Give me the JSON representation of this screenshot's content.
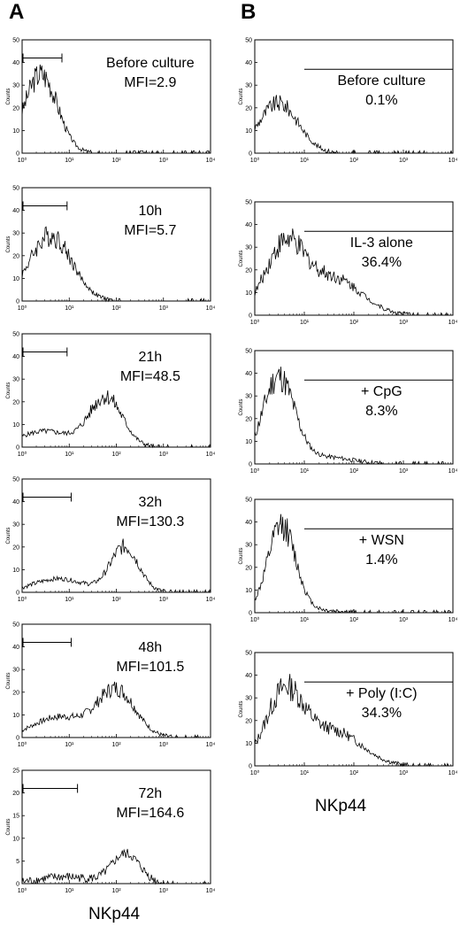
{
  "figure": {
    "panel_a": {
      "letter": "A",
      "x_axis_title": "NKp44"
    },
    "panel_b": {
      "letter": "B",
      "x_axis_title": "NKp44"
    }
  },
  "chart_data": [
    {
      "panel": "A",
      "type": "area",
      "y_axis_label": "Counts",
      "xscale": "log",
      "xlim": [
        1,
        10000
      ],
      "ylim": [
        0,
        50
      ],
      "yticks": [
        0,
        10,
        20,
        30,
        40,
        50
      ],
      "xticks": [
        "10⁰",
        "10¹",
        "10²",
        "10³",
        "10⁴"
      ],
      "annotation": [
        "Before culture",
        "MFI=2.9"
      ],
      "gate": [
        1,
        7
      ],
      "profile": {
        "peak_x": 2.5,
        "peak_y": 35,
        "width": 0.35,
        "tail": 0.0,
        "tail_x": 0
      }
    },
    {
      "panel": "A",
      "type": "area",
      "y_axis_label": "Counts",
      "xscale": "log",
      "xlim": [
        1,
        10000
      ],
      "ylim": [
        0,
        50
      ],
      "yticks": [
        0,
        10,
        20,
        30,
        40,
        50
      ],
      "xticks": [
        "10⁰",
        "10¹",
        "10²",
        "10³",
        "10⁴"
      ],
      "annotation": [
        "10h",
        "MFI=5.7"
      ],
      "gate": [
        1,
        9
      ],
      "profile": {
        "peak_x": 4,
        "peak_y": 29,
        "width": 0.45,
        "tail": 0.0,
        "tail_x": 0
      }
    },
    {
      "panel": "A",
      "type": "area",
      "y_axis_label": "Counts",
      "xscale": "log",
      "xlim": [
        1,
        10000
      ],
      "ylim": [
        0,
        50
      ],
      "yticks": [
        0,
        10,
        20,
        30,
        40,
        50
      ],
      "xticks": [
        "10⁰",
        "10¹",
        "10²",
        "10³",
        "10⁴"
      ],
      "annotation": [
        "21h",
        "MFI=48.5"
      ],
      "gate": [
        1,
        9
      ],
      "profile": {
        "peak_x": 60,
        "peak_y": 22,
        "width": 0.35,
        "tail": 7,
        "tail_x": 3
      }
    },
    {
      "panel": "A",
      "type": "area",
      "y_axis_label": "Counts",
      "xscale": "log",
      "xlim": [
        1,
        10000
      ],
      "ylim": [
        0,
        50
      ],
      "yticks": [
        0,
        10,
        20,
        30,
        40,
        50
      ],
      "xticks": [
        "10⁰",
        "10¹",
        "10²",
        "10³",
        "10⁴"
      ],
      "annotation": [
        "32h",
        "MFI=130.3"
      ],
      "gate": [
        1,
        11
      ],
      "profile": {
        "peak_x": 150,
        "peak_y": 20,
        "width": 0.3,
        "tail": 6,
        "tail_x": 6
      }
    },
    {
      "panel": "A",
      "type": "area",
      "y_axis_label": "Counts",
      "xscale": "log",
      "xlim": [
        1,
        10000
      ],
      "ylim": [
        0,
        50
      ],
      "yticks": [
        0,
        10,
        20,
        30,
        40,
        50
      ],
      "xticks": [
        "10⁰",
        "10¹",
        "10²",
        "10³",
        "10⁴"
      ],
      "annotation": [
        "48h",
        "MFI=101.5"
      ],
      "gate": [
        1,
        11
      ],
      "profile": {
        "peak_x": 100,
        "peak_y": 21,
        "width": 0.4,
        "tail": 9,
        "tail_x": 6
      }
    },
    {
      "panel": "A",
      "type": "area",
      "y_axis_label": "Counts",
      "xscale": "log",
      "xlim": [
        1,
        10000
      ],
      "ylim": [
        0,
        25
      ],
      "yticks": [
        0,
        5,
        10,
        15,
        20,
        25
      ],
      "xticks": [
        "10⁰",
        "10¹",
        "10²",
        "10³",
        "10⁴"
      ],
      "annotation": [
        "72h",
        "MFI=164.6"
      ],
      "gate": [
        1,
        15
      ],
      "profile": {
        "peak_x": 160,
        "peak_y": 6.5,
        "width": 0.3,
        "tail": 1.5,
        "tail_x": 8
      }
    },
    {
      "panel": "B",
      "type": "area",
      "y_axis_label": "Counts",
      "xscale": "log",
      "xlim": [
        1,
        10000
      ],
      "ylim": [
        0,
        50
      ],
      "yticks": [
        0,
        10,
        20,
        30,
        40,
        50
      ],
      "xticks": [
        "10⁰",
        "10¹",
        "10²",
        "10³",
        "10⁴"
      ],
      "annotation": [
        "Before culture",
        "0.1%"
      ],
      "gate": [
        10,
        10000
      ],
      "profile": {
        "peak_x": 3,
        "peak_y": 22,
        "width": 0.4,
        "tail": 0.0,
        "tail_x": 0
      }
    },
    {
      "panel": "B",
      "type": "area",
      "y_axis_label": "Counts",
      "xscale": "log",
      "xlim": [
        1,
        10000
      ],
      "ylim": [
        0,
        50
      ],
      "yticks": [
        0,
        10,
        20,
        30,
        40,
        50
      ],
      "xticks": [
        "10⁰",
        "10¹",
        "10²",
        "10³",
        "10⁴"
      ],
      "annotation": [
        "IL-3 alone",
        "36.4%"
      ],
      "gate": [
        10,
        10000
      ],
      "profile": {
        "peak_x": 4,
        "peak_y": 30,
        "width": 0.4,
        "tail": 16,
        "tail_x": 40
      }
    },
    {
      "panel": "B",
      "type": "area",
      "y_axis_label": "Counts",
      "xscale": "log",
      "xlim": [
        1,
        10000
      ],
      "ylim": [
        0,
        50
      ],
      "yticks": [
        0,
        10,
        20,
        30,
        40,
        50
      ],
      "xticks": [
        "10⁰",
        "10¹",
        "10²",
        "10³",
        "10⁴"
      ],
      "annotation": [
        "+ CpG",
        "8.3%"
      ],
      "gate": [
        10,
        10000
      ],
      "profile": {
        "peak_x": 3,
        "peak_y": 38,
        "width": 0.32,
        "tail": 3,
        "tail_x": 25
      }
    },
    {
      "panel": "B",
      "type": "area",
      "y_axis_label": "Counts",
      "xscale": "log",
      "xlim": [
        1,
        10000
      ],
      "ylim": [
        0,
        50
      ],
      "yticks": [
        0,
        10,
        20,
        30,
        40,
        50
      ],
      "xticks": [
        "10⁰",
        "10¹",
        "10²",
        "10³",
        "10⁴"
      ],
      "annotation": [
        "+ WSN",
        "1.4%"
      ],
      "gate": [
        10,
        10000
      ],
      "profile": {
        "peak_x": 3.5,
        "peak_y": 38,
        "width": 0.28,
        "tail": 1,
        "tail_x": 15
      }
    },
    {
      "panel": "B",
      "type": "area",
      "y_axis_label": "Counts",
      "xscale": "log",
      "xlim": [
        1,
        10000
      ],
      "ylim": [
        0,
        50
      ],
      "yticks": [
        0,
        10,
        20,
        30,
        40,
        50
      ],
      "xticks": [
        "10⁰",
        "10¹",
        "10²",
        "10³",
        "10⁴"
      ],
      "annotation": [
        "+ Poly (I:C)",
        "34.3%"
      ],
      "gate": [
        10,
        10000
      ],
      "profile": {
        "peak_x": 4,
        "peak_y": 32,
        "width": 0.38,
        "tail": 15,
        "tail_x": 40
      }
    }
  ]
}
